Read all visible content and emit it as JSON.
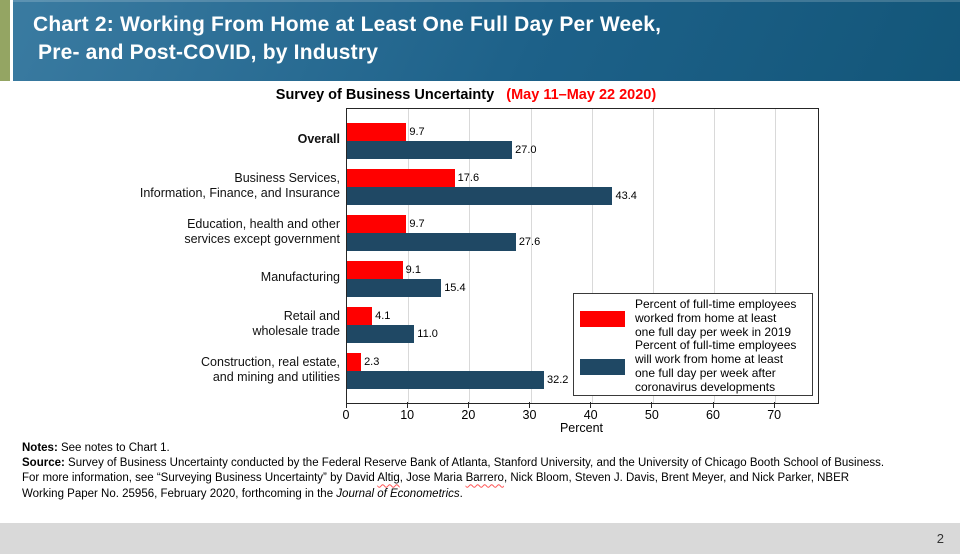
{
  "header": {
    "title_line1": "Chart 2: Working From Home at Least One Full Day Per Week,",
    "title_line2": "Pre- and Post-COVID, by Industry"
  },
  "colors": {
    "header_gradient_start": "#3a7ba1",
    "header_gradient_end": "#135679",
    "accent_stripe_green": "#94a563",
    "series_red": "#ff0000",
    "series_navy": "#1f4864",
    "gridline": "#d9d9d9",
    "footer_bar": "#d9d9d9",
    "title_highlight_red": "#ff0000"
  },
  "chart_data": {
    "type": "bar",
    "orientation": "horizontal",
    "title": "Survey of Business Uncertainty",
    "title_note": "(May 11–May 22 2020)",
    "xlabel": "Percent",
    "xlim": [
      0,
      77
    ],
    "xticks": [
      0,
      10,
      20,
      30,
      40,
      50,
      60,
      70
    ],
    "grid": true,
    "legend_position": "inside bottom-right",
    "categories": [
      {
        "label": "Overall",
        "bold": true
      },
      {
        "label": "Business Services,\nInformation, Finance, and Insurance",
        "bold": false
      },
      {
        "label": "Education, health and other\nservices except government",
        "bold": false
      },
      {
        "label": "Manufacturing",
        "bold": false
      },
      {
        "label": "Retail and\nwholesale trade",
        "bold": false
      },
      {
        "label": "Construction, real estate,\nand mining and utilities",
        "bold": false
      }
    ],
    "series": [
      {
        "name": "Percent of full-time employees worked from home at least one full day per week in 2019",
        "legend_lines": "Percent of full-time employees\nworked from home at least\none full day per week in 2019",
        "color": "#ff0000",
        "values": [
          9.7,
          17.6,
          9.7,
          9.1,
          4.1,
          2.3
        ],
        "value_labels": [
          "9.7",
          "17.6",
          "9.7",
          "9.1",
          "4.1",
          "2.3"
        ]
      },
      {
        "name": "Percent of full-time employees will work from home at least one full day per week after coronavirus developments",
        "legend_lines": "Percent of full-time employees\nwill work from home at least\none full day per week after\ncoronavirus developments",
        "color": "#1f4864",
        "values": [
          27.0,
          43.4,
          27.6,
          15.4,
          11.0,
          32.2
        ],
        "value_labels": [
          "27.0",
          "43.4",
          "27.6",
          "15.4",
          "11.0",
          "32.2"
        ]
      }
    ]
  },
  "notes": {
    "line1_label": "Notes:",
    "line1_text": " See notes to Chart 1.",
    "line2_label": "Source:",
    "line2_text": " Survey of Business Uncertainty conducted by the Federal Reserve Bank of Atlanta, Stanford University, and the University of Chicago Booth School of Business.",
    "line3_part1": "For more information, see “Surveying Business Uncertainty” by David ",
    "line3_misspell1": "Altig",
    "line3_part2": ", Jose Maria ",
    "line3_misspell2": "Barrero",
    "line3_part3": ", Nick Bloom, Steven J. Davis, Brent Meyer, and Nick Parker, NBER",
    "line4_part1": "Working Paper No. 25956, February 2020, forthcoming in the ",
    "line4_italic": "Journal of Econometrics",
    "line4_part2": "."
  },
  "footer": {
    "page_number": "2"
  }
}
